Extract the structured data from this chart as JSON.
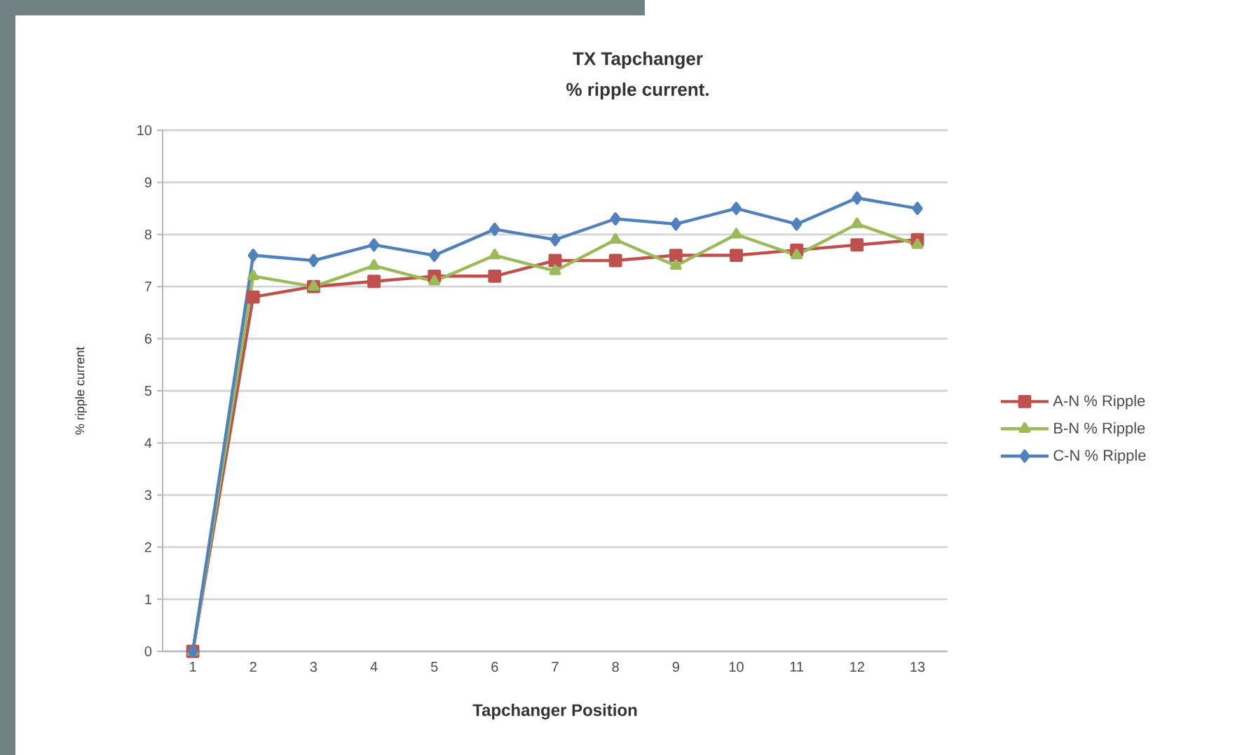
{
  "chart_data": {
    "type": "line",
    "title": "TX Tapchanger",
    "subtitle": "% ripple current.",
    "xlabel": "Tapchanger Position",
    "ylabel": "% ripple current",
    "categories": [
      "1",
      "2",
      "3",
      "4",
      "5",
      "6",
      "7",
      "8",
      "9",
      "10",
      "11",
      "12",
      "13"
    ],
    "series": [
      {
        "name": "A-N % Ripple",
        "color": "#c0504d",
        "marker": "square",
        "values": [
          0,
          6.8,
          7.0,
          7.1,
          7.2,
          7.2,
          7.5,
          7.5,
          7.6,
          7.6,
          7.7,
          7.8,
          7.9
        ]
      },
      {
        "name": "B-N % Ripple",
        "color": "#9bbb59",
        "marker": "triangle",
        "values": [
          0,
          7.2,
          7.0,
          7.4,
          7.1,
          7.6,
          7.3,
          7.9,
          7.4,
          8.0,
          7.6,
          8.2,
          7.8
        ]
      },
      {
        "name": "C-N % Ripple",
        "color": "#4f81bd",
        "marker": "diamond",
        "values": [
          0,
          7.6,
          7.5,
          7.8,
          7.6,
          8.1,
          7.9,
          8.3,
          8.2,
          8.5,
          8.2,
          8.7,
          8.5
        ]
      }
    ],
    "ylim": [
      0,
      10
    ],
    "yticks": [
      0,
      1,
      2,
      3,
      4,
      5,
      6,
      7,
      8,
      9,
      10
    ],
    "grid": "y",
    "legend": "right"
  }
}
